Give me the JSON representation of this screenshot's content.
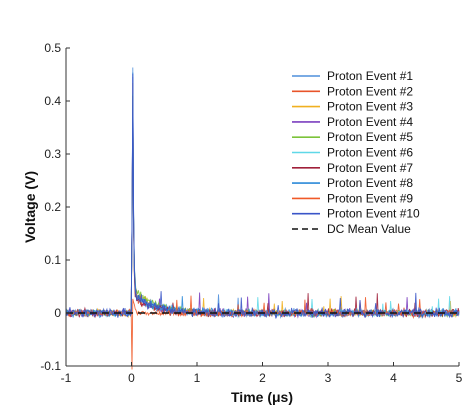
{
  "chart_data": {
    "type": "line",
    "xlabel": "Time (μs)",
    "ylabel": "Voltage (V)",
    "xlim": [
      -1,
      5
    ],
    "ylim": [
      -0.1,
      0.5
    ],
    "xticks": [
      -1,
      0,
      1,
      2,
      3,
      4,
      5
    ],
    "yticks": [
      -0.1,
      0,
      0.1,
      0.2,
      0.3,
      0.4,
      0.5
    ],
    "x_tick_labels": [
      "-1",
      "0",
      "1",
      "2",
      "3",
      "4",
      "5"
    ],
    "y_tick_labels": [
      "-0.1",
      "0",
      "0.1",
      "0.2",
      "0.3",
      "0.4",
      "0.5"
    ],
    "grid": false,
    "legend_position": "top-right",
    "series": [
      {
        "name": "Proton Event #1",
        "color": "#4f8fdc",
        "peak": 0.42,
        "tail": 0.03,
        "decay": 0.3,
        "noise": 0.006
      },
      {
        "name": "Proton Event #2",
        "color": "#e8542a",
        "peak": 0.4,
        "tail": 0.025,
        "decay": 0.25,
        "noise": 0.006
      },
      {
        "name": "Proton Event #3",
        "color": "#f0b020",
        "peak": 0.38,
        "tail": 0.035,
        "decay": 0.35,
        "noise": 0.005
      },
      {
        "name": "Proton Event #4",
        "color": "#7b3fbf",
        "peak": 0.41,
        "tail": 0.028,
        "decay": 0.3,
        "noise": 0.006
      },
      {
        "name": "Proton Event #5",
        "color": "#7cc33a",
        "peak": 0.37,
        "tail": 0.04,
        "decay": 0.35,
        "noise": 0.005
      },
      {
        "name": "Proton Event #6",
        "color": "#5fd8e8",
        "peak": 0.39,
        "tail": 0.03,
        "decay": 0.3,
        "noise": 0.005
      },
      {
        "name": "Proton Event #7",
        "color": "#a0203a",
        "peak": 0.4,
        "tail": 0.026,
        "decay": 0.28,
        "noise": 0.006
      },
      {
        "name": "Proton Event #8",
        "color": "#2b8ad8",
        "peak": 0.42,
        "tail": 0.032,
        "decay": 0.32,
        "noise": 0.006
      },
      {
        "name": "Proton Event #9",
        "color": "#f05a28",
        "peak": 0.03,
        "tail": 0.0,
        "decay": 0.2,
        "noise": 0.004,
        "dip": -0.1
      },
      {
        "name": "Proton Event #10",
        "color": "#3a55c8",
        "peak": 0.42,
        "tail": 0.03,
        "decay": 0.3,
        "noise": 0.007
      },
      {
        "name": "DC Mean Value",
        "color": "#111111",
        "constant": 0.0,
        "style": "dashed"
      }
    ]
  }
}
